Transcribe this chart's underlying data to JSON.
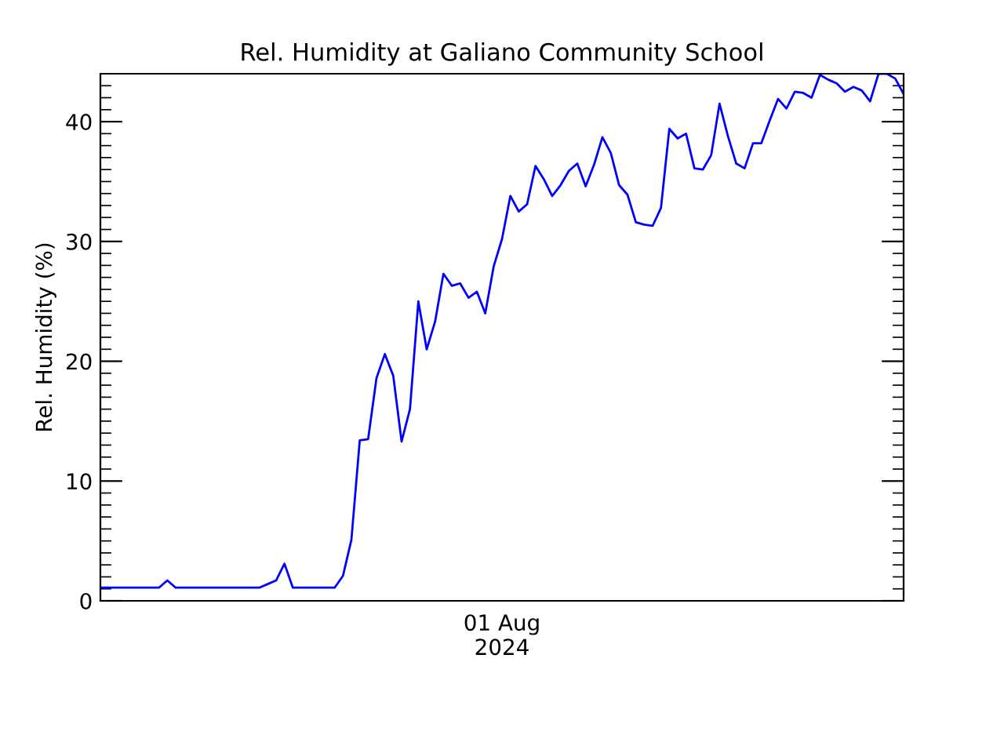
{
  "chart_data": {
    "type": "line",
    "title": "Rel. Humidity at Galiano Community School",
    "ylabel": "Rel. Humidity (%)",
    "categories": [
      null,
      null,
      null,
      null,
      null,
      null,
      null,
      null,
      null,
      null,
      null,
      null,
      null,
      null,
      null,
      null,
      null,
      null,
      null,
      null,
      null,
      null,
      null,
      null,
      null,
      null,
      null,
      null,
      null,
      null,
      null,
      null,
      null,
      null,
      null,
      null,
      null,
      null,
      null,
      null,
      null,
      null,
      null,
      null,
      null,
      null,
      null,
      null,
      "01 Aug\n2024",
      null,
      null,
      null,
      null,
      null,
      null,
      null,
      null,
      null,
      null,
      null,
      null,
      null,
      null,
      null,
      null,
      null,
      null,
      null,
      null,
      null,
      null,
      null,
      null,
      null,
      null,
      null,
      null,
      null,
      null,
      null,
      null,
      null,
      null,
      null,
      null,
      null,
      null,
      null,
      null,
      null,
      null,
      null,
      null,
      null,
      null,
      null,
      null
    ],
    "series": [
      {
        "color": "#0000ff",
        "values": [
          1.1,
          1.1,
          1.1,
          1.1,
          1.1,
          1.1,
          1.1,
          1.1,
          1.7,
          1.1,
          1.1,
          1.1,
          1.1,
          1.1,
          1.1,
          1.1,
          1.1,
          1.1,
          1.1,
          1.1,
          1.4,
          1.7,
          3.1,
          1.1,
          1.1,
          1.1,
          1.1,
          1.1,
          1.1,
          2.1,
          5.1,
          13.4,
          13.5,
          18.6,
          20.6,
          18.8,
          13.3,
          16.0,
          25.0,
          21.0,
          23.3,
          27.3,
          26.3,
          26.5,
          25.3,
          25.8,
          24.0,
          27.9,
          30.2,
          33.8,
          32.5,
          33.1,
          36.3,
          35.2,
          33.8,
          34.7,
          35.9,
          36.5,
          34.6,
          36.4,
          38.7,
          37.4,
          34.7,
          33.9,
          31.6,
          31.4,
          31.3,
          32.8,
          39.4,
          38.6,
          39.0,
          36.1,
          36.0,
          37.2,
          41.5,
          38.8,
          36.5,
          36.1,
          38.2,
          38.2,
          40.1,
          41.9,
          41.1,
          42.5,
          42.4,
          42.0,
          43.9,
          43.5,
          43.2,
          42.5,
          42.9,
          42.6,
          41.7,
          44.0,
          44.0,
          43.6,
          42.3
        ]
      }
    ],
    "ylim": [
      0,
      44
    ],
    "yticks": [
      {
        "value": 0,
        "label": "0"
      },
      {
        "value": 1,
        "label": null
      },
      {
        "value": 2,
        "label": null
      },
      {
        "value": 3,
        "label": null
      },
      {
        "value": 4,
        "label": null
      },
      {
        "value": 5,
        "label": null
      },
      {
        "value": 6,
        "label": null
      },
      {
        "value": 7,
        "label": null
      },
      {
        "value": 8,
        "label": null
      },
      {
        "value": 9,
        "label": null
      },
      {
        "value": 10,
        "label": "10"
      },
      {
        "value": 11,
        "label": null
      },
      {
        "value": 12,
        "label": null
      },
      {
        "value": 13,
        "label": null
      },
      {
        "value": 14,
        "label": null
      },
      {
        "value": 15,
        "label": null
      },
      {
        "value": 16,
        "label": null
      },
      {
        "value": 17,
        "label": null
      },
      {
        "value": 18,
        "label": null
      },
      {
        "value": 19,
        "label": null
      },
      {
        "value": 20,
        "label": "20"
      },
      {
        "value": 21,
        "label": null
      },
      {
        "value": 22,
        "label": null
      },
      {
        "value": 23,
        "label": null
      },
      {
        "value": 24,
        "label": null
      },
      {
        "value": 25,
        "label": null
      },
      {
        "value": 26,
        "label": null
      },
      {
        "value": 27,
        "label": null
      },
      {
        "value": 28,
        "label": null
      },
      {
        "value": 29,
        "label": null
      },
      {
        "value": 30,
        "label": "30"
      },
      {
        "value": 31,
        "label": null
      },
      {
        "value": 32,
        "label": null
      },
      {
        "value": 33,
        "label": null
      },
      {
        "value": 34,
        "label": null
      },
      {
        "value": 35,
        "label": null
      },
      {
        "value": 36,
        "label": null
      },
      {
        "value": 37,
        "label": null
      },
      {
        "value": 38,
        "label": null
      },
      {
        "value": 39,
        "label": null
      },
      {
        "value": 40,
        "label": "40"
      },
      {
        "value": 41,
        "label": null
      },
      {
        "value": 42,
        "label": null
      },
      {
        "value": 43,
        "label": null
      },
      {
        "value": 44,
        "label": null
      }
    ],
    "grid": false,
    "marker": "none",
    "line_style": "solid"
  }
}
